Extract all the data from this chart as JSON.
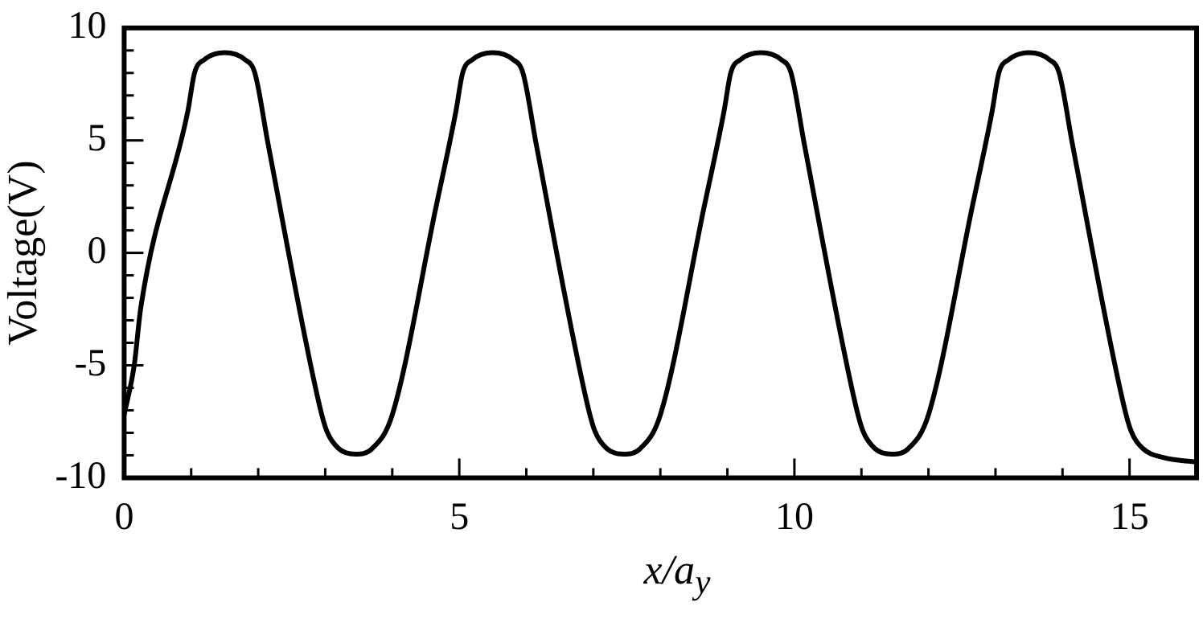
{
  "chart_data": {
    "type": "line",
    "xlabel": "x/a$_{y}$",
    "ylabel": "Voltage(V)",
    "xlim": [
      0,
      16
    ],
    "ylim": [
      -10,
      10
    ],
    "xticks": [
      0,
      {
        "value": 1,
        "label": null
      },
      {
        "value": 2,
        "label": null
      },
      {
        "value": 3,
        "label": null
      },
      {
        "value": 4,
        "label": null
      },
      5,
      {
        "value": 6,
        "label": null
      },
      {
        "value": 7,
        "label": null
      },
      {
        "value": 8,
        "label": null
      },
      {
        "value": 9,
        "label": null
      },
      10,
      {
        "value": 11,
        "label": null
      },
      {
        "value": 12,
        "label": null
      },
      {
        "value": 13,
        "label": null
      },
      {
        "value": 14,
        "label": null
      },
      15,
      {
        "value": 16,
        "label": null
      }
    ],
    "yticks": [
      -10,
      {
        "value": -9,
        "label": null
      },
      {
        "value": -8,
        "label": null
      },
      {
        "value": -7,
        "label": null
      },
      {
        "value": -6,
        "label": null
      },
      -5,
      {
        "value": -4,
        "label": null
      },
      {
        "value": -3,
        "label": null
      },
      {
        "value": -2,
        "label": null
      },
      {
        "value": -1,
        "label": null
      },
      0,
      {
        "value": 1,
        "label": null
      },
      {
        "value": 2,
        "label": null
      },
      {
        "value": 3,
        "label": null
      },
      {
        "value": 4,
        "label": null
      },
      5,
      {
        "value": 6,
        "label": null
      },
      {
        "value": 7,
        "label": null
      },
      {
        "value": 8,
        "label": null
      },
      {
        "value": 9,
        "label": null
      },
      10
    ],
    "grid": false,
    "legend": false,
    "marker": "none",
    "line_style": "solid",
    "series": [
      {
        "color": "#000000",
        "x": [
          0,
          0.15,
          0.25,
          0.95,
          1.05,
          1.2,
          1.5,
          1.8,
          1.95,
          2.15,
          2.9,
          3.02,
          3.2,
          3.45,
          3.7,
          4.0,
          4.65,
          4.95,
          5.05,
          5.2,
          5.5,
          5.8,
          5.95,
          6.15,
          6.9,
          7.02,
          7.2,
          7.45,
          7.7,
          8.0,
          8.65,
          8.95,
          9.05,
          9.2,
          9.5,
          9.8,
          9.95,
          10.15,
          10.9,
          11.02,
          11.2,
          11.45,
          11.7,
          12.0,
          12.65,
          12.95,
          13.05,
          13.2,
          13.5,
          13.8,
          13.95,
          14.15,
          14.9,
          15.02,
          15.2,
          15.5,
          16
        ],
        "values": [
          -7.2,
          -5,
          -2.4,
          6.3,
          8.0,
          8.6,
          8.9,
          8.6,
          8.0,
          4.8,
          -6.6,
          -7.9,
          -8.7,
          -8.95,
          -8.7,
          -7.2,
          2.0,
          6.3,
          8.0,
          8.6,
          8.9,
          8.6,
          8.0,
          4.8,
          -6.6,
          -7.9,
          -8.7,
          -8.95,
          -8.7,
          -7.2,
          2.0,
          6.3,
          8.0,
          8.6,
          8.9,
          8.6,
          8.0,
          4.8,
          -6.6,
          -7.9,
          -8.7,
          -8.95,
          -8.7,
          -7.2,
          2.0,
          6.3,
          8.0,
          8.6,
          8.9,
          8.6,
          8.0,
          4.8,
          -6.6,
          -7.9,
          -8.7,
          -9.1,
          -9.3
        ]
      }
    ]
  }
}
